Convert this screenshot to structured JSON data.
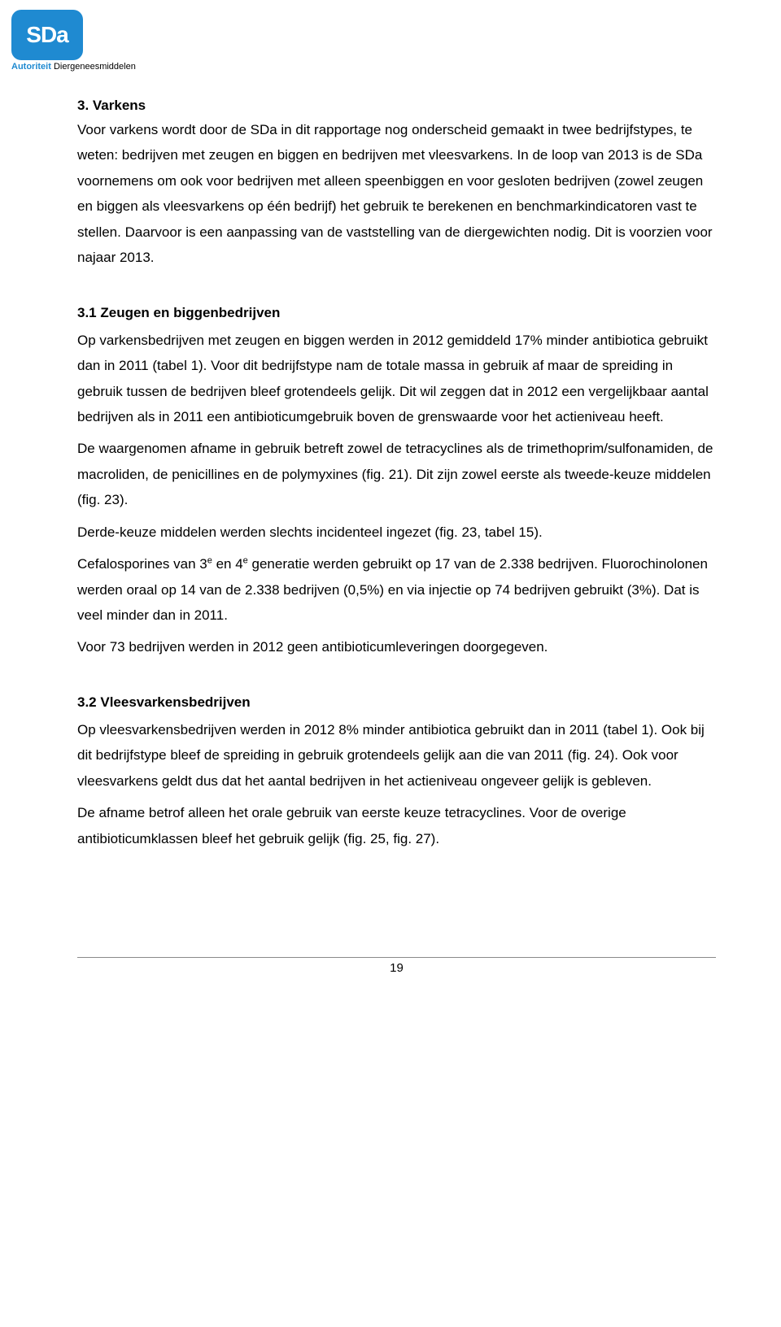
{
  "logo": {
    "mark": "SDa",
    "subtitle_blue": "Autoriteit",
    "subtitle_black": " Diergeneesmiddelen",
    "brand_color": "#1f8ad1"
  },
  "section3": {
    "heading": "3. Varkens",
    "p1": "Voor varkens wordt door de SDa in dit rapportage nog onderscheid gemaakt in twee bedrijfstypes, te weten: bedrijven met zeugen en biggen en bedrijven met vleesvarkens. In de loop van 2013 is de SDa voornemens om ook voor bedrijven met alleen speenbiggen en voor gesloten bedrijven (zowel zeugen en biggen als vleesvarkens op één bedrijf) het gebruik te berekenen en benchmarkindicatoren vast te stellen. Daarvoor is een aanpassing van de vaststelling van de diergewichten nodig. Dit is voorzien voor najaar 2013."
  },
  "section3_1": {
    "heading": "3.1 Zeugen en biggenbedrijven",
    "p1": "Op varkensbedrijven met zeugen en biggen werden in 2012 gemiddeld 17% minder antibiotica gebruikt dan in 2011 (tabel 1). Voor dit bedrijfstype nam de totale massa in gebruik af maar de spreiding in gebruik tussen de bedrijven bleef grotendeels gelijk. Dit wil zeggen dat in 2012 een vergelijkbaar aantal bedrijven als in 2011 een antibioticumgebruik boven de grenswaarde voor het actieniveau heeft.",
    "p2": "De waargenomen afname in gebruik betreft zowel de tetracyclines als de trimethoprim/sulfonamiden, de macroliden, de penicillines en de polymyxines (fig. 21). Dit zijn zowel eerste als tweede-keuze middelen (fig. 23).",
    "p3": "Derde-keuze middelen werden slechts incidenteel ingezet (fig. 23, tabel 15).",
    "p4a": "Cefalosporines van 3",
    "p4sup1": "e",
    "p4b": " en 4",
    "p4sup2": "e",
    "p4c": " generatie werden gebruikt op 17 van de 2.338 bedrijven. Fluorochinolonen werden oraal op 14 van de 2.338 bedrijven (0,5%) en via injectie op 74 bedrijven gebruikt (3%). Dat is veel minder dan in 2011.",
    "p5": "Voor 73 bedrijven werden in 2012 geen antibioticumleveringen doorgegeven."
  },
  "section3_2": {
    "heading": "3.2 Vleesvarkensbedrijven",
    "p1": "Op vleesvarkensbedrijven werden in 2012 8% minder antibiotica gebruikt dan in 2011 (tabel 1). Ook bij dit bedrijfstype bleef de spreiding in gebruik grotendeels gelijk aan die van 2011 (fig. 24). Ook voor vleesvarkens geldt dus dat het aantal bedrijven in het actieniveau ongeveer gelijk is gebleven.",
    "p2": "De afname betrof alleen het orale gebruik van eerste keuze tetracyclines. Voor de overige antibioticumklassen bleef het gebruik gelijk (fig. 25, fig. 27)."
  },
  "footer": {
    "page_number": "19"
  }
}
